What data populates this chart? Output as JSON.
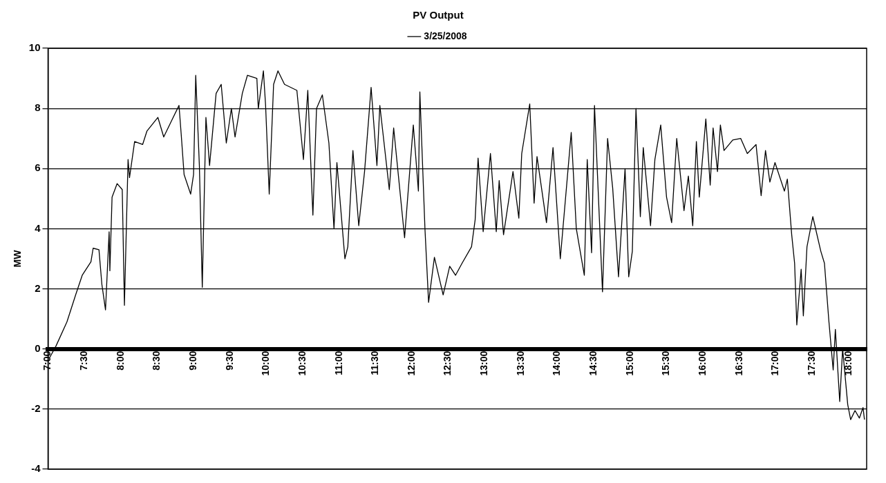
{
  "chart_data": {
    "type": "line",
    "title": "PV Output",
    "ylabel": "MW",
    "legend": "top",
    "grid": "y",
    "marker": "none",
    "line_style": "solid",
    "xlim": [
      7,
      18.25
    ],
    "ylim": [
      -4,
      10
    ],
    "yticks": [
      -4,
      -2,
      0,
      2,
      4,
      6,
      8,
      10
    ],
    "xticks": [
      {
        "value": 7,
        "label": "7:00"
      },
      {
        "value": 7.5,
        "label": "7:30"
      },
      {
        "value": 8,
        "label": "8:00"
      },
      {
        "value": 8.5,
        "label": "8:30"
      },
      {
        "value": 9,
        "label": "9:00"
      },
      {
        "value": 9.5,
        "label": "9:30"
      },
      {
        "value": 10,
        "label": "10:00"
      },
      {
        "value": 10.5,
        "label": "10:30"
      },
      {
        "value": 11,
        "label": "11:00"
      },
      {
        "value": 11.5,
        "label": "11:30"
      },
      {
        "value": 12,
        "label": "12:00"
      },
      {
        "value": 12.5,
        "label": "12:30"
      },
      {
        "value": 13,
        "label": "13:00"
      },
      {
        "value": 13.5,
        "label": "13:30"
      },
      {
        "value": 14,
        "label": "14:00"
      },
      {
        "value": 14.5,
        "label": "14:30"
      },
      {
        "value": 15,
        "label": "15:00"
      },
      {
        "value": 15.5,
        "label": "15:30"
      },
      {
        "value": 16,
        "label": "16:00"
      },
      {
        "value": 16.5,
        "label": "16:30"
      },
      {
        "value": 17,
        "label": "17:00"
      },
      {
        "value": 17.5,
        "label": "17:30"
      },
      {
        "value": 18,
        "label": "18:00"
      }
    ],
    "series": [
      {
        "name": "3/25/2008",
        "color": "#000000",
        "x": [
          7.02,
          7.11,
          7.26,
          7.38,
          7.47,
          7.59,
          7.62,
          7.7,
          7.74,
          7.79,
          7.84,
          7.85,
          7.88,
          7.95,
          8.02,
          8.05,
          8.1,
          8.12,
          8.19,
          8.3,
          8.36,
          8.51,
          8.59,
          8.7,
          8.8,
          8.83,
          8.87,
          8.96,
          9.0,
          9.03,
          9.08,
          9.12,
          9.17,
          9.22,
          9.31,
          9.38,
          9.45,
          9.52,
          9.57,
          9.67,
          9.74,
          9.87,
          9.89,
          9.96,
          9.99,
          10.04,
          10.1,
          10.16,
          10.25,
          10.42,
          10.51,
          10.57,
          10.64,
          10.69,
          10.77,
          10.86,
          10.93,
          10.97,
          11.08,
          11.12,
          11.19,
          11.27,
          11.35,
          11.44,
          11.52,
          11.56,
          11.69,
          11.75,
          11.9,
          12.02,
          12.09,
          12.11,
          12.18,
          12.23,
          12.31,
          12.43,
          12.52,
          12.6,
          12.69,
          12.82,
          12.87,
          12.91,
          12.98,
          13.08,
          13.16,
          13.2,
          13.26,
          13.39,
          13.47,
          13.51,
          13.62,
          13.68,
          13.72,
          13.85,
          13.94,
          14.04,
          14.19,
          14.26,
          14.37,
          14.41,
          14.47,
          14.51,
          14.62,
          14.69,
          14.76,
          14.84,
          14.93,
          14.98,
          15.03,
          15.08,
          15.14,
          15.18,
          15.28,
          15.34,
          15.42,
          15.5,
          15.57,
          15.64,
          15.74,
          15.8,
          15.86,
          15.91,
          15.95,
          16.04,
          16.1,
          16.14,
          16.2,
          16.24,
          16.29,
          16.41,
          16.52,
          16.61,
          16.73,
          16.8,
          16.86,
          16.92,
          16.99,
          17.12,
          17.16,
          17.22,
          17.26,
          17.29,
          17.35,
          17.38,
          17.43,
          17.51,
          17.62,
          17.67,
          17.73,
          17.79,
          17.82,
          17.88,
          17.92,
          17.99,
          18.03,
          18.09,
          18.15,
          18.2,
          18.22
        ],
        "values": [
          -0.3,
          0.1,
          0.9,
          1.8,
          2.45,
          2.9,
          3.35,
          3.3,
          2.15,
          1.3,
          3.9,
          2.6,
          5.05,
          5.5,
          5.3,
          1.45,
          6.3,
          5.7,
          6.9,
          6.8,
          7.25,
          7.7,
          7.05,
          7.6,
          8.1,
          7.15,
          5.8,
          5.15,
          5.8,
          9.1,
          6.1,
          2.05,
          7.7,
          6.1,
          8.5,
          8.8,
          6.85,
          8.0,
          7.05,
          8.5,
          9.1,
          9.0,
          8.0,
          9.25,
          8.1,
          5.15,
          8.8,
          9.25,
          8.8,
          8.6,
          6.3,
          8.6,
          4.45,
          8.0,
          8.45,
          6.85,
          4.0,
          6.2,
          3.0,
          3.4,
          6.6,
          4.1,
          5.9,
          8.7,
          6.1,
          8.1,
          5.3,
          7.35,
          3.7,
          7.45,
          5.25,
          8.55,
          4.0,
          1.55,
          3.05,
          1.8,
          2.75,
          2.45,
          2.85,
          3.4,
          4.3,
          6.35,
          3.9,
          6.5,
          3.9,
          5.6,
          3.8,
          5.9,
          4.35,
          6.5,
          8.15,
          4.85,
          6.4,
          4.2,
          6.7,
          3.0,
          7.2,
          4.0,
          2.45,
          6.3,
          3.2,
          8.1,
          1.9,
          7.0,
          5.35,
          2.4,
          6.0,
          2.4,
          3.25,
          8.0,
          4.4,
          6.7,
          4.1,
          6.3,
          7.45,
          5.05,
          4.2,
          7.0,
          4.6,
          5.75,
          4.1,
          6.9,
          5.05,
          7.65,
          5.45,
          7.35,
          5.9,
          7.45,
          6.6,
          6.95,
          7.0,
          6.5,
          6.8,
          5.1,
          6.6,
          5.55,
          6.2,
          5.25,
          5.65,
          3.8,
          2.85,
          0.8,
          2.65,
          1.1,
          3.4,
          4.4,
          3.25,
          2.85,
          0.95,
          -0.7,
          0.65,
          -1.75,
          0.0,
          -1.85,
          -2.35,
          -2.05,
          -2.3,
          -1.95,
          -2.35
        ]
      }
    ]
  }
}
